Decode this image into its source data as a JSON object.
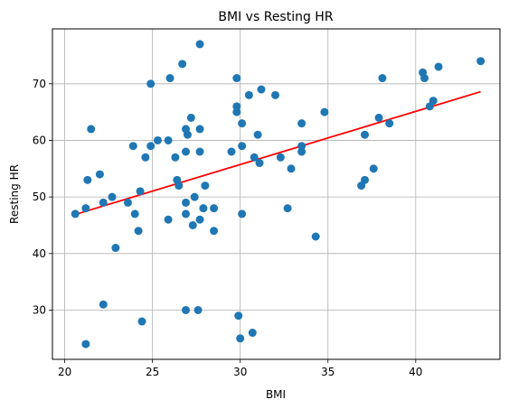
{
  "chart_data": {
    "type": "scatter",
    "title": "BMI vs Resting HR",
    "xlabel": "BMI",
    "ylabel": "Resting HR",
    "xlim": [
      19.3,
      44.8
    ],
    "ylim": [
      21.3,
      79.7
    ],
    "xticks": [
      20,
      25,
      30,
      35,
      40
    ],
    "yticks": [
      30,
      40,
      50,
      60,
      70
    ],
    "grid": true,
    "point_color": "#1f77b4",
    "trend_color": "#ff0000",
    "points": [
      [
        20.6,
        47
      ],
      [
        21.2,
        48
      ],
      [
        21.3,
        53
      ],
      [
        21.5,
        62
      ],
      [
        21.2,
        24
      ],
      [
        22.0,
        54
      ],
      [
        22.2,
        49
      ],
      [
        22.2,
        31
      ],
      [
        22.7,
        50
      ],
      [
        22.9,
        41
      ],
      [
        23.6,
        49
      ],
      [
        23.9,
        59
      ],
      [
        24.0,
        47
      ],
      [
        24.2,
        44
      ],
      [
        24.3,
        51
      ],
      [
        24.6,
        57
      ],
      [
        24.4,
        28
      ],
      [
        24.9,
        59
      ],
      [
        24.9,
        70
      ],
      [
        25.3,
        60
      ],
      [
        25.9,
        60
      ],
      [
        26.0,
        71
      ],
      [
        25.9,
        46
      ],
      [
        26.3,
        57
      ],
      [
        26.4,
        53
      ],
      [
        26.5,
        52
      ],
      [
        26.7,
        73.5
      ],
      [
        26.9,
        62
      ],
      [
        26.9,
        58
      ],
      [
        26.9,
        49
      ],
      [
        26.9,
        47
      ],
      [
        27.0,
        61
      ],
      [
        27.2,
        64
      ],
      [
        27.3,
        45
      ],
      [
        27.4,
        50
      ],
      [
        27.7,
        77
      ],
      [
        27.7,
        62
      ],
      [
        27.7,
        58
      ],
      [
        27.7,
        46
      ],
      [
        27.9,
        48
      ],
      [
        28.0,
        52
      ],
      [
        26.9,
        30
      ],
      [
        27.6,
        30
      ],
      [
        28.5,
        48
      ],
      [
        28.5,
        44
      ],
      [
        29.5,
        58
      ],
      [
        29.8,
        66
      ],
      [
        29.8,
        65
      ],
      [
        29.8,
        71
      ],
      [
        30.1,
        63
      ],
      [
        30.1,
        59
      ],
      [
        30.1,
        47
      ],
      [
        29.9,
        29
      ],
      [
        30.0,
        25
      ],
      [
        30.5,
        68
      ],
      [
        30.8,
        57
      ],
      [
        31.0,
        61
      ],
      [
        31.2,
        69
      ],
      [
        31.1,
        56
      ],
      [
        30.7,
        26
      ],
      [
        32.0,
        68
      ],
      [
        32.3,
        57
      ],
      [
        32.7,
        48
      ],
      [
        32.9,
        55
      ],
      [
        33.5,
        59
      ],
      [
        33.5,
        58
      ],
      [
        33.5,
        63
      ],
      [
        34.3,
        43
      ],
      [
        34.8,
        65
      ],
      [
        36.9,
        52
      ],
      [
        37.1,
        53
      ],
      [
        37.1,
        61
      ],
      [
        37.6,
        55
      ],
      [
        37.9,
        64
      ],
      [
        38.1,
        71
      ],
      [
        38.5,
        63
      ],
      [
        40.4,
        72
      ],
      [
        40.5,
        71
      ],
      [
        40.8,
        66
      ],
      [
        41.0,
        67
      ],
      [
        41.3,
        73
      ],
      [
        43.7,
        74
      ]
    ],
    "trend_line": [
      [
        20.6,
        46.9
      ],
      [
        43.7,
        68.6
      ]
    ]
  }
}
